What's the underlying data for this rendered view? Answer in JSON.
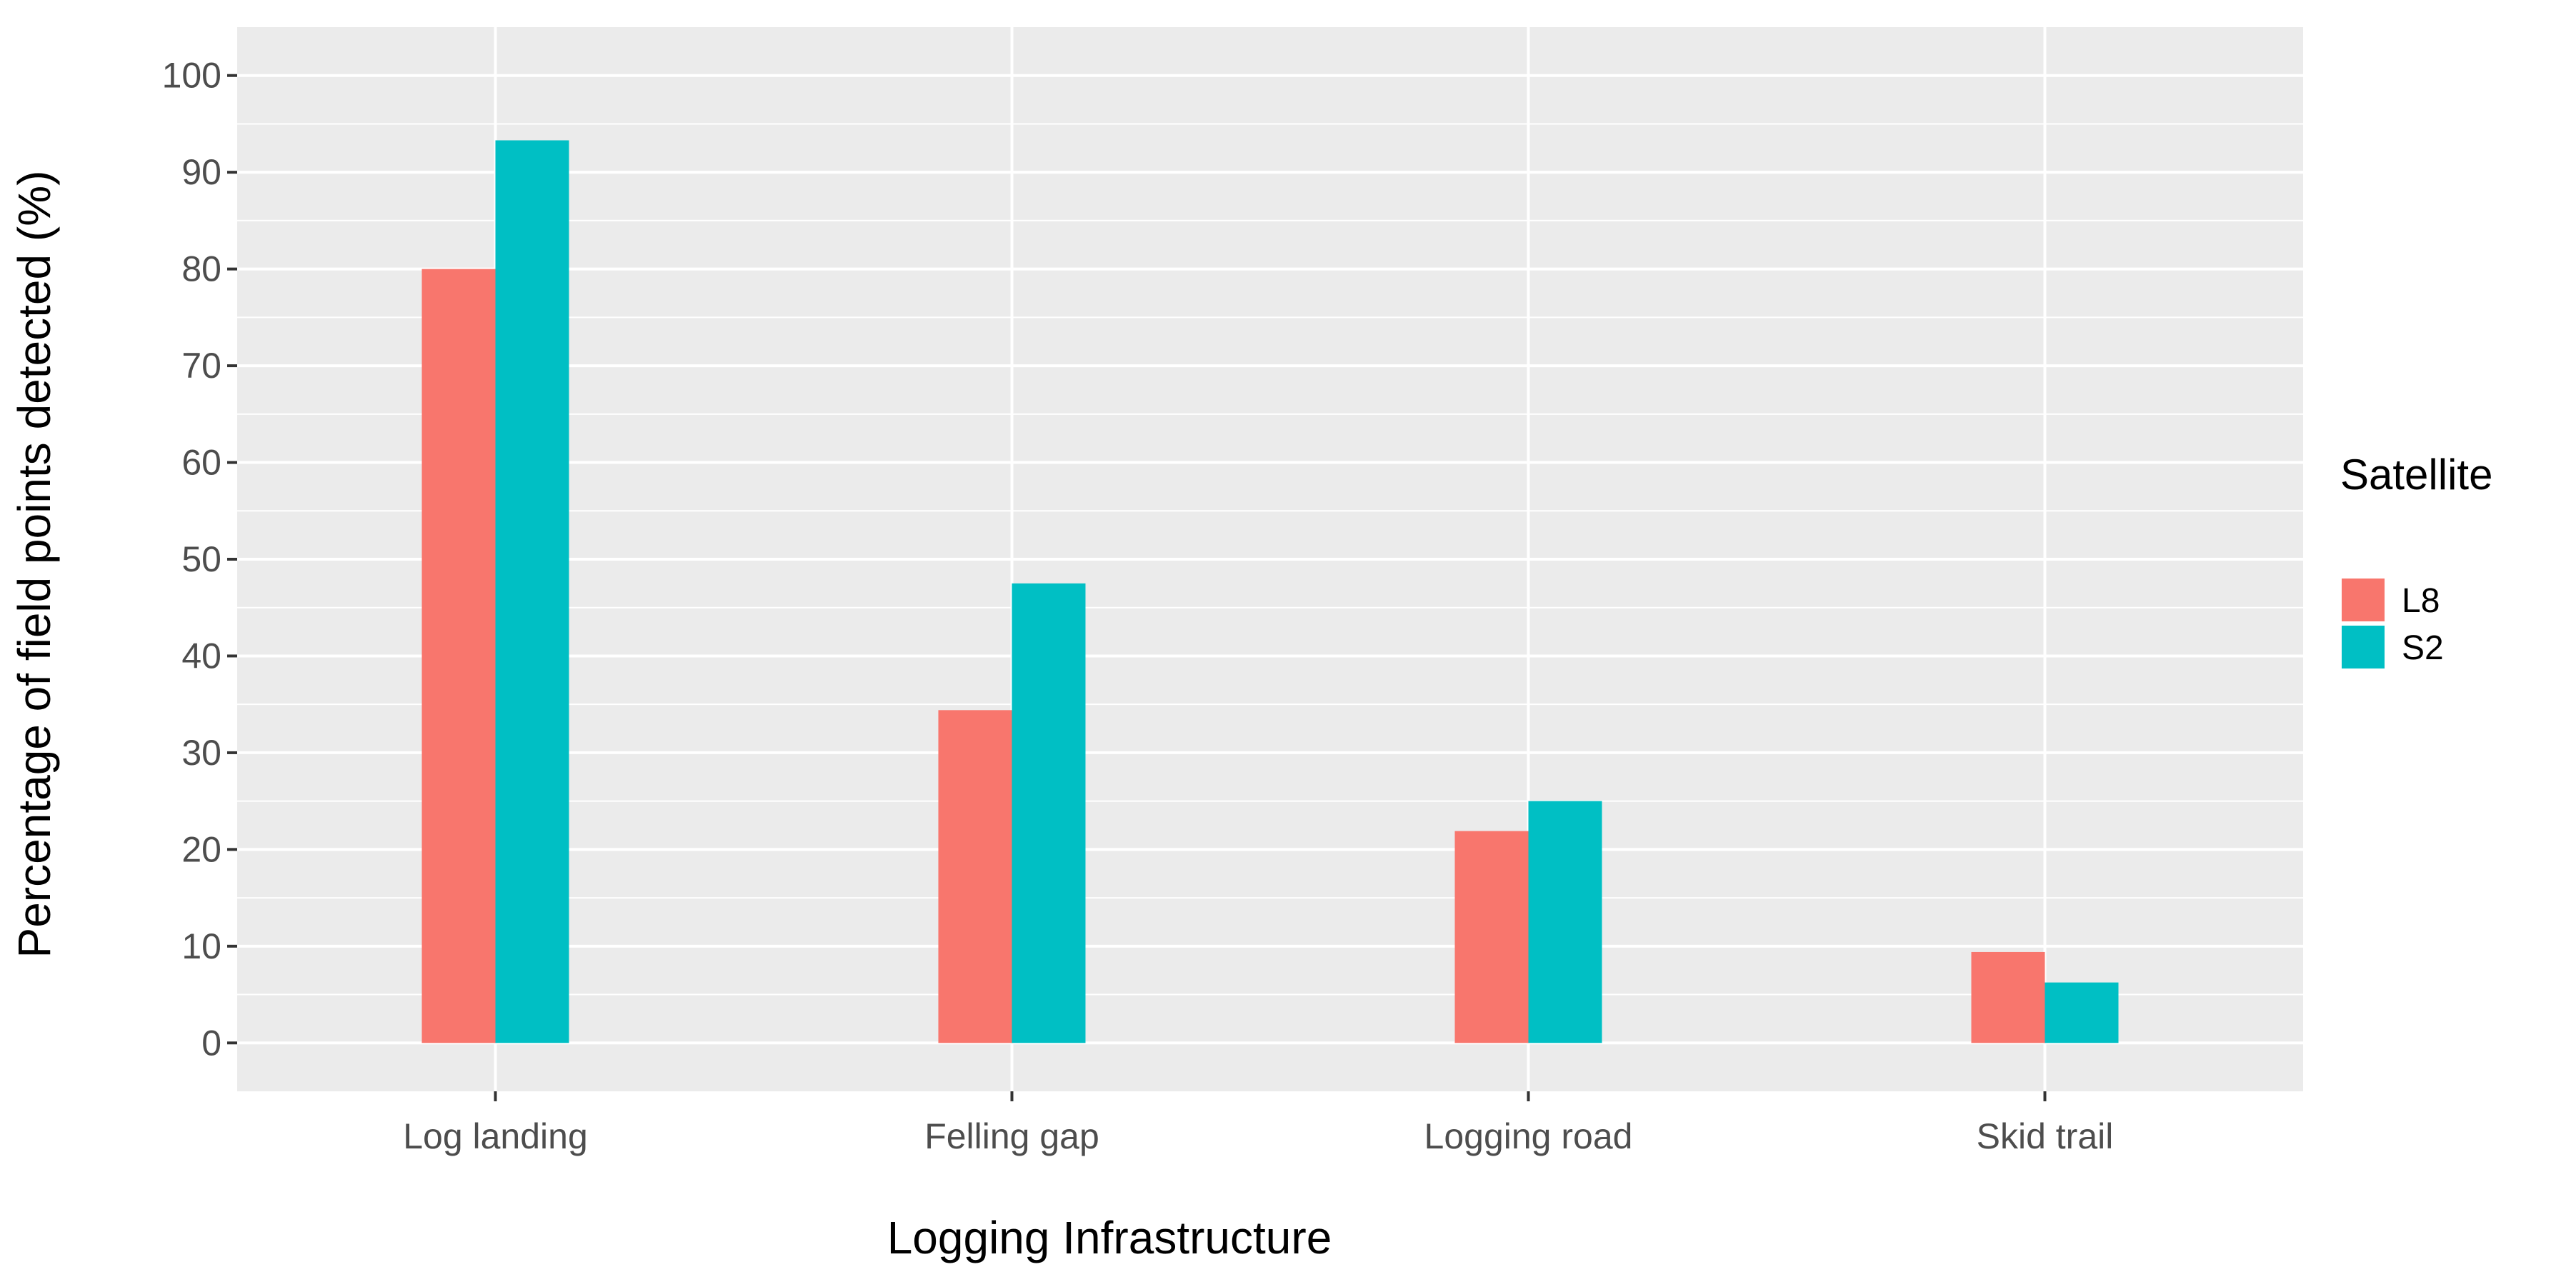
{
  "chart_data": {
    "type": "bar",
    "title": "",
    "xlabel": "Logging Infrastructure",
    "ylabel": "Percentage of field points detected (%)",
    "categories": [
      "Log landing",
      "Felling gap",
      "Logging road",
      "Skid trail"
    ],
    "series": [
      {
        "name": "L8",
        "color": "#F8766D",
        "values": [
          80,
          34.4,
          21.9,
          9.4
        ]
      },
      {
        "name": "S2",
        "color": "#00BFC4",
        "values": [
          93.3,
          47.5,
          25,
          6.25
        ]
      }
    ],
    "ylim": [
      -5,
      105
    ],
    "yticks": [
      0,
      10,
      20,
      30,
      40,
      50,
      60,
      70,
      80,
      90,
      100
    ],
    "grid": true,
    "panel_background": "#EBEBEB",
    "grid_color": "#FFFFFF",
    "legend": {
      "title": "Satellite",
      "position": "right"
    }
  }
}
